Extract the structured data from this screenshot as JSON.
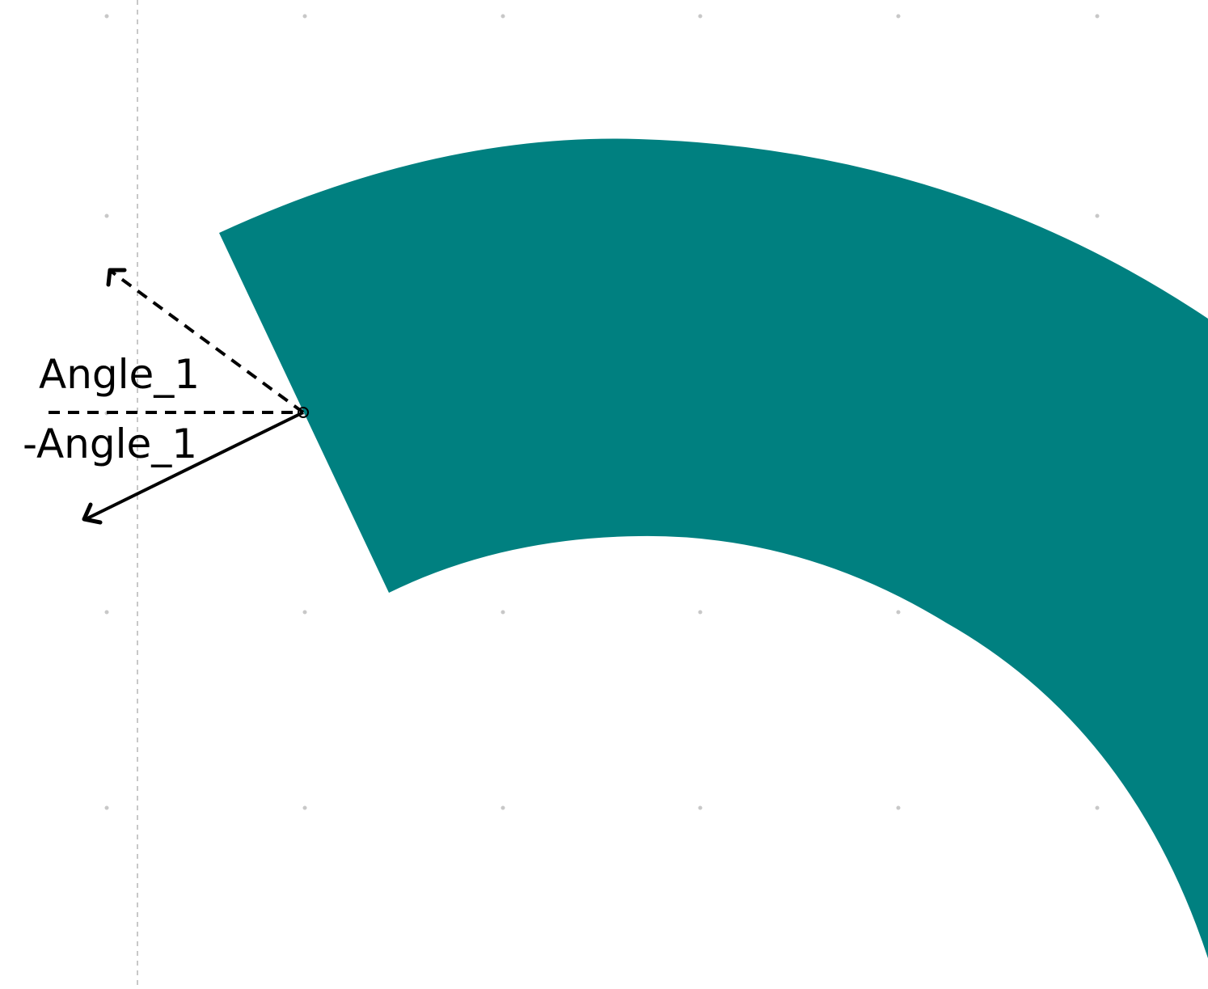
{
  "diagram": {
    "labels": {
      "angle_positive": "Angle_1",
      "angle_negative": "-Angle_1"
    },
    "colors": {
      "shape_fill": "#008080",
      "background": "#ffffff",
      "grid": "#c8c8c8",
      "arrows": "#000000"
    }
  }
}
